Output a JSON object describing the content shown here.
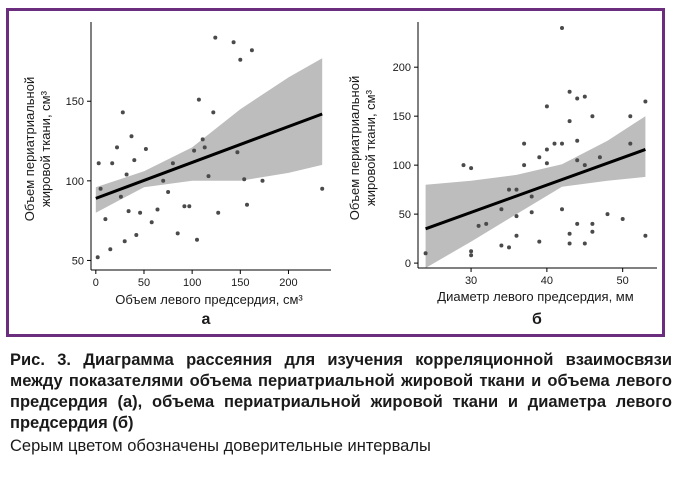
{
  "caption": {
    "title": "Рис. 3. Диаграмма рассеяния для изучения корреляционной взаимосвязи между показателями объема периатриальной жировой ткани и объема левого предсердия (а), объема периатриальной жировой ткани и диаметра левого предсердия (б)",
    "note": "Серым цветом обозначены доверительные интервалы"
  },
  "colors": {
    "frame": "#6b2e7e",
    "band": "#bdbdbd",
    "line": "#000000",
    "points": "#4a4a4a"
  },
  "chart_data": [
    {
      "type": "scatter",
      "panel_label": "а",
      "xlabel": "Объем левого предсердия, см³",
      "ylabel": "Объем периатриальной жировой ткани, см³",
      "xlim": [
        -5,
        240
      ],
      "ylim": [
        44,
        196
      ],
      "xticks": [
        0,
        50,
        100,
        150,
        200
      ],
      "yticks": [
        50,
        100,
        150
      ],
      "points": [
        [
          2,
          52
        ],
        [
          3,
          111
        ],
        [
          5,
          95
        ],
        [
          10,
          76
        ],
        [
          15,
          57
        ],
        [
          17,
          111
        ],
        [
          22,
          121
        ],
        [
          26,
          90
        ],
        [
          28,
          143
        ],
        [
          30,
          62
        ],
        [
          32,
          104
        ],
        [
          34,
          81
        ],
        [
          37,
          128
        ],
        [
          40,
          113
        ],
        [
          42,
          66
        ],
        [
          46,
          80
        ],
        [
          52,
          120
        ],
        [
          58,
          74
        ],
        [
          64,
          82
        ],
        [
          70,
          100
        ],
        [
          75,
          93
        ],
        [
          80,
          111
        ],
        [
          85,
          67
        ],
        [
          92,
          84
        ],
        [
          97,
          84
        ],
        [
          102,
          119
        ],
        [
          105,
          63
        ],
        [
          107,
          151
        ],
        [
          111,
          126
        ],
        [
          113,
          121
        ],
        [
          117,
          103
        ],
        [
          122,
          143
        ],
        [
          124,
          190
        ],
        [
          127,
          80
        ],
        [
          143,
          187
        ],
        [
          147,
          118
        ],
        [
          150,
          176
        ],
        [
          154,
          101
        ],
        [
          157,
          85
        ],
        [
          162,
          182
        ],
        [
          173,
          100
        ],
        [
          235,
          95
        ]
      ],
      "fit": {
        "x": [
          0,
          235
        ],
        "y": [
          89,
          142
        ]
      },
      "ci_upper": [
        [
          0,
          96
        ],
        [
          50,
          106
        ],
        [
          100,
          121
        ],
        [
          150,
          145
        ],
        [
          200,
          165
        ],
        [
          235,
          177
        ]
      ],
      "ci_lower": [
        [
          0,
          80
        ],
        [
          50,
          96
        ],
        [
          100,
          100
        ],
        [
          150,
          100
        ],
        [
          200,
          105
        ],
        [
          235,
          110
        ]
      ]
    },
    {
      "type": "scatter",
      "panel_label": "б",
      "xlabel": "Диаметр левого предсердия, мм",
      "ylabel": "Объем периатриальной жировой ткани, см³",
      "xlim": [
        23,
        54
      ],
      "ylim": [
        -5,
        240
      ],
      "xticks": [
        30,
        40,
        50
      ],
      "yticks": [
        0,
        50,
        100,
        150,
        200
      ],
      "points": [
        [
          24,
          10
        ],
        [
          29,
          100
        ],
        [
          30,
          97
        ],
        [
          30,
          8
        ],
        [
          30,
          12
        ],
        [
          31,
          38
        ],
        [
          32,
          40
        ],
        [
          34,
          55
        ],
        [
          34,
          18
        ],
        [
          35,
          16
        ],
        [
          35,
          75
        ],
        [
          36,
          75
        ],
        [
          36,
          48
        ],
        [
          36,
          28
        ],
        [
          37,
          100
        ],
        [
          37,
          122
        ],
        [
          38,
          68
        ],
        [
          38,
          52
        ],
        [
          39,
          22
        ],
        [
          39,
          108
        ],
        [
          40,
          102
        ],
        [
          40,
          116
        ],
        [
          40,
          160
        ],
        [
          41,
          122
        ],
        [
          42,
          55
        ],
        [
          42,
          122
        ],
        [
          43,
          145
        ],
        [
          43,
          175
        ],
        [
          43,
          20
        ],
        [
          43,
          30
        ],
        [
          44,
          168
        ],
        [
          44,
          40
        ],
        [
          44,
          105
        ],
        [
          44,
          125
        ],
        [
          45,
          100
        ],
        [
          45,
          170
        ],
        [
          45,
          20
        ],
        [
          46,
          150
        ],
        [
          46,
          40
        ],
        [
          46,
          32
        ],
        [
          47,
          108
        ],
        [
          48,
          50
        ],
        [
          50,
          45
        ],
        [
          51,
          122
        ],
        [
          51,
          150
        ],
        [
          53,
          165
        ],
        [
          53,
          28
        ],
        [
          42,
          240
        ]
      ],
      "fit": {
        "x": [
          24,
          53
        ],
        "y": [
          35,
          116
        ]
      },
      "ci_upper": [
        [
          24,
          80
        ],
        [
          30,
          84
        ],
        [
          36,
          90
        ],
        [
          42,
          101
        ],
        [
          48,
          125
        ],
        [
          53,
          150
        ]
      ],
      "ci_lower": [
        [
          24,
          -5
        ],
        [
          30,
          22
        ],
        [
          36,
          50
        ],
        [
          42,
          78
        ],
        [
          48,
          84
        ],
        [
          53,
          88
        ]
      ]
    }
  ]
}
